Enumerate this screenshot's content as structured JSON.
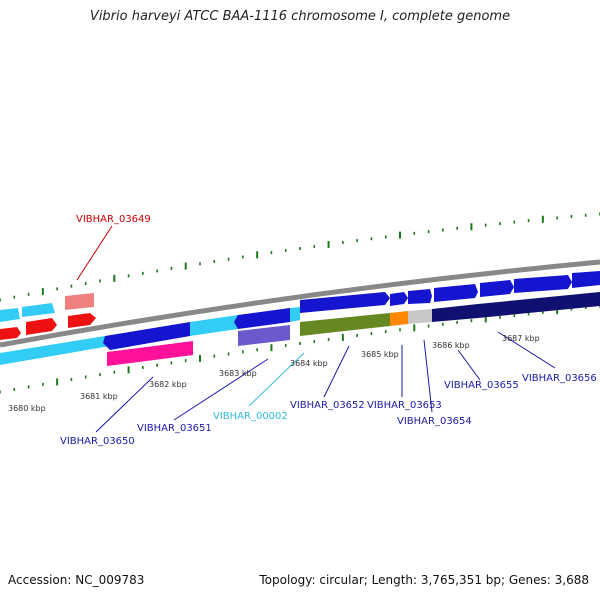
{
  "title": "Vibrio harveyi ATCC BAA-1116 chromosome I, complete genome",
  "footer": {
    "accession": "Accession: NC_009783",
    "topology": "Topology: circular; Length: 3,765,351 bp; Genes: 3,688"
  },
  "colors": {
    "backbone": "#888888",
    "tick": "#1a7a1a",
    "red_label": "#cc0000",
    "blue_label": "#1a1aaa",
    "cyan_label": "#33bbdd"
  },
  "kbp_labels": [
    "3680 kbp",
    "3681 kbp",
    "3682 kbp",
    "3683 kbp",
    "3684 kbp",
    "3685 kbp",
    "3686 kbp",
    "3687 kbp"
  ],
  "gene_labels": [
    "VIBHAR_03649",
    "VIBHAR_03650",
    "VIBHAR_03651",
    "VIBHAR_00002",
    "VIBHAR_03652",
    "VIBHAR_03653",
    "VIBHAR_03654",
    "VIBHAR_03655",
    "VIBHAR_03656"
  ]
}
